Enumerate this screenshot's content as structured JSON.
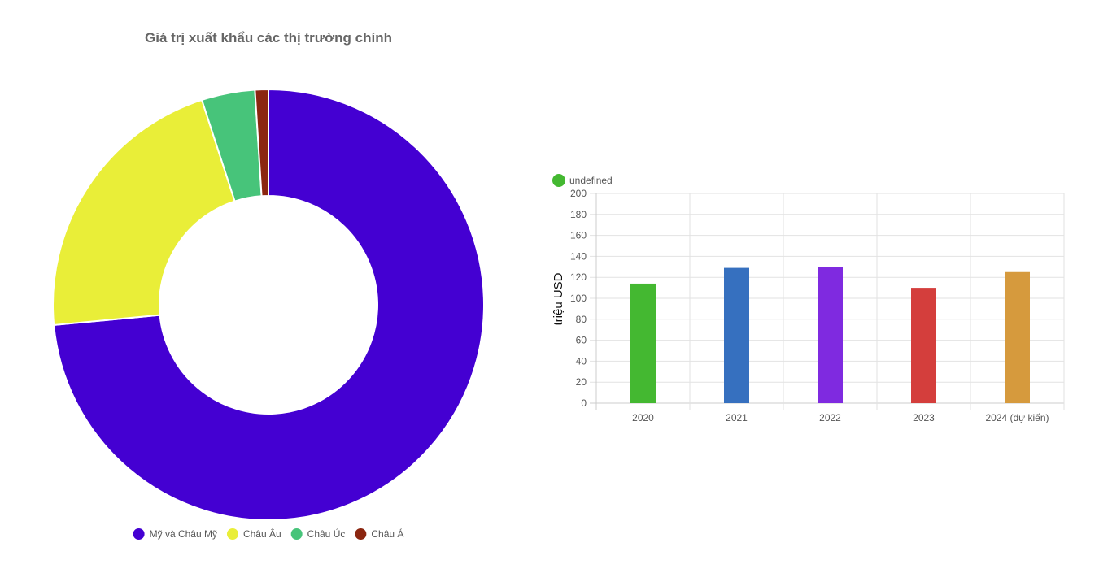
{
  "chart_data": [
    {
      "type": "pie",
      "variant": "doughnut",
      "title": "Giá trị xuất khẩu các thị trường chính",
      "categories": [
        "Mỹ và Châu Mỹ",
        "Châu Âu",
        "Châu Úc",
        "Châu Á"
      ],
      "values": [
        73.5,
        21.5,
        4.0,
        1.0
      ],
      "colors": [
        "#4400d2",
        "#e9ee38",
        "#47c47a",
        "#8b2610"
      ],
      "legend_position": "bottom"
    },
    {
      "type": "bar",
      "title": "",
      "categories": [
        "2020",
        "2021",
        "2022",
        "2023",
        "2024 (dự kiến)"
      ],
      "series": [
        {
          "name": "undefined",
          "values": [
            114,
            129,
            130,
            110,
            125
          ]
        }
      ],
      "colors": [
        "#44b831",
        "#3670bf",
        "#7f2ae0",
        "#d43e3c",
        "#d69a3d"
      ],
      "xlabel": "",
      "ylabel": "triệu USD",
      "ylim": [
        0,
        200
      ],
      "yticks": [
        0,
        20,
        40,
        60,
        80,
        100,
        120,
        140,
        160,
        180,
        200
      ],
      "grid": true,
      "legend_position": "top-left"
    }
  ]
}
